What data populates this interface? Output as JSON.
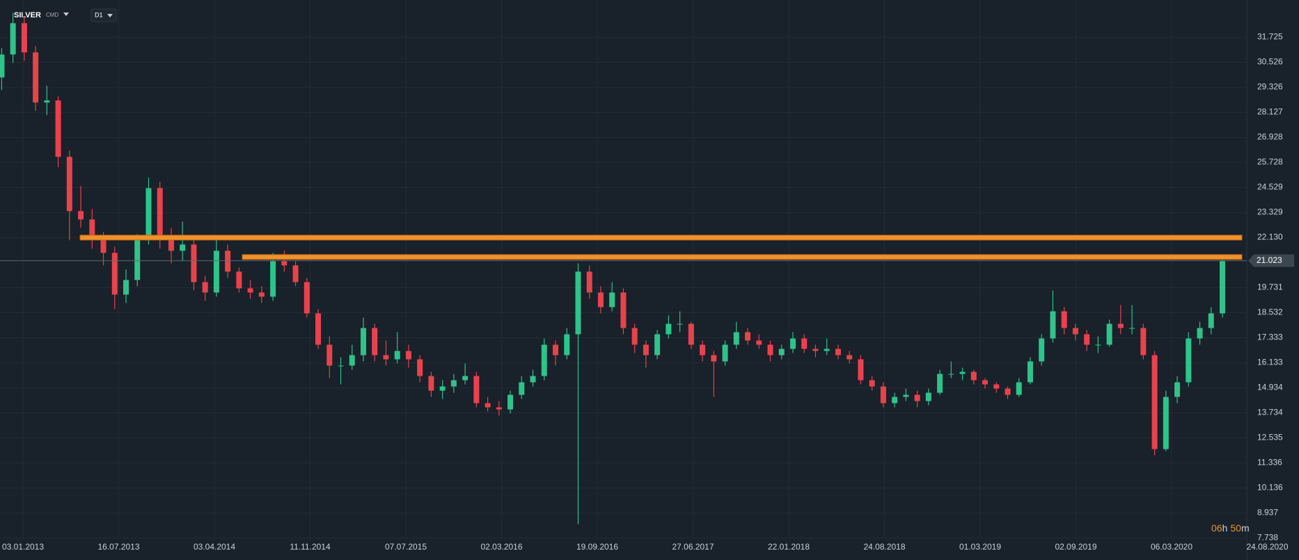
{
  "header": {
    "symbol": "SILVER",
    "market": "CMD",
    "interval": "D1"
  },
  "countdown": [
    "06",
    "h",
    "50",
    "m"
  ],
  "chart_data": {
    "type": "candlestick",
    "up_color": "#2fc38a",
    "down_color": "#e8434d",
    "ylim": [
      7.738,
      33.51
    ],
    "yticks": [
      31.725,
      30.526,
      29.326,
      28.127,
      26.928,
      25.728,
      24.529,
      23.329,
      {
        "value": 22.13,
        "label": "22.130"
      },
      19.731,
      18.532,
      17.333,
      16.133,
      14.934,
      13.734,
      12.535,
      11.336,
      10.136,
      8.937,
      7.738
    ],
    "last_price": 21.023,
    "levels": [
      22.13,
      21.2
    ],
    "level_color": "#f0922b",
    "xlabels": [
      "03.01.2013",
      "16.07.2013",
      "03.04.2014",
      "11.11.2014",
      "07.07.2015",
      "02.03.2016",
      "19.09.2016",
      "27.06.2017",
      "22.01.2018",
      "24.08.2018",
      "01.03.2019",
      "02.09.2019",
      "06.03.2020",
      "24.08.2020"
    ],
    "ohlc": [
      [
        29.8,
        31.2,
        29.2,
        30.9
      ],
      [
        30.9,
        32.9,
        30.5,
        32.4
      ],
      [
        32.4,
        32.7,
        30.6,
        31.0
      ],
      [
        31.0,
        31.3,
        28.2,
        28.6
      ],
      [
        28.6,
        29.4,
        28.0,
        28.7
      ],
      [
        28.7,
        28.9,
        25.5,
        26.0
      ],
      [
        26.0,
        26.3,
        22.0,
        23.4
      ],
      [
        23.4,
        24.6,
        22.6,
        23.0
      ],
      [
        23.0,
        23.5,
        21.6,
        22.0
      ],
      [
        22.0,
        22.4,
        20.8,
        21.4
      ],
      [
        21.4,
        21.7,
        18.7,
        19.4
      ],
      [
        19.4,
        20.6,
        19.0,
        20.1
      ],
      [
        20.1,
        22.3,
        19.8,
        22.0
      ],
      [
        22.0,
        25.0,
        21.8,
        24.5
      ],
      [
        24.5,
        24.8,
        21.6,
        22.0
      ],
      [
        22.0,
        22.6,
        20.9,
        21.5
      ],
      [
        21.5,
        22.9,
        21.0,
        21.8
      ],
      [
        21.8,
        22.0,
        19.6,
        20.0
      ],
      [
        20.0,
        20.3,
        19.1,
        19.5
      ],
      [
        19.5,
        22.1,
        19.3,
        21.5
      ],
      [
        21.5,
        21.8,
        20.2,
        20.5
      ],
      [
        20.5,
        20.7,
        19.5,
        19.7
      ],
      [
        19.7,
        20.1,
        19.2,
        19.5
      ],
      [
        19.5,
        19.8,
        19.0,
        19.3
      ],
      [
        19.3,
        21.4,
        19.1,
        21.0
      ],
      [
        21.0,
        21.5,
        20.5,
        20.8
      ],
      [
        20.8,
        21.0,
        19.8,
        20.0
      ],
      [
        20.0,
        20.2,
        18.3,
        18.5
      ],
      [
        18.5,
        18.7,
        16.8,
        17.0
      ],
      [
        17.0,
        17.4,
        15.4,
        16.0
      ],
      [
        16.0,
        16.4,
        15.1,
        16.0
      ],
      [
        16.0,
        17.0,
        15.8,
        16.5
      ],
      [
        16.5,
        18.3,
        16.2,
        17.8
      ],
      [
        17.8,
        18.0,
        16.2,
        16.5
      ],
      [
        16.5,
        17.2,
        16.0,
        16.3
      ],
      [
        16.3,
        17.6,
        16.1,
        16.7
      ],
      [
        16.7,
        17.0,
        15.9,
        16.3
      ],
      [
        16.3,
        16.5,
        15.2,
        15.5
      ],
      [
        15.5,
        15.7,
        14.5,
        14.8
      ],
      [
        14.8,
        15.3,
        14.4,
        15.0
      ],
      [
        15.0,
        15.6,
        14.7,
        15.3
      ],
      [
        15.3,
        16.1,
        15.1,
        15.5
      ],
      [
        15.5,
        15.7,
        14.0,
        14.2
      ],
      [
        14.2,
        14.5,
        13.8,
        14.0
      ],
      [
        14.0,
        14.3,
        13.6,
        13.9
      ],
      [
        13.9,
        14.8,
        13.7,
        14.6
      ],
      [
        14.6,
        15.5,
        14.4,
        15.2
      ],
      [
        15.2,
        15.8,
        15.0,
        15.5
      ],
      [
        15.5,
        17.3,
        15.3,
        17.0
      ],
      [
        17.0,
        17.2,
        16.0,
        16.5
      ],
      [
        16.5,
        17.8,
        16.3,
        17.5
      ],
      [
        17.5,
        20.9,
        8.4,
        20.5
      ],
      [
        20.5,
        20.8,
        19.2,
        19.5
      ],
      [
        19.5,
        19.8,
        18.5,
        18.8
      ],
      [
        18.8,
        20.0,
        18.6,
        19.5
      ],
      [
        19.5,
        19.7,
        17.5,
        17.8
      ],
      [
        17.8,
        18.0,
        16.6,
        17.0
      ],
      [
        17.0,
        17.2,
        15.9,
        16.5
      ],
      [
        16.5,
        17.7,
        16.3,
        17.5
      ],
      [
        17.5,
        18.4,
        17.3,
        18.0
      ],
      [
        18.0,
        18.6,
        17.6,
        18.0
      ],
      [
        18.0,
        18.1,
        16.8,
        17.0
      ],
      [
        17.0,
        17.2,
        16.2,
        16.5
      ],
      [
        16.5,
        16.7,
        14.5,
        16.2
      ],
      [
        16.2,
        17.2,
        16.0,
        17.0
      ],
      [
        17.0,
        18.1,
        16.8,
        17.6
      ],
      [
        17.6,
        17.8,
        17.0,
        17.2
      ],
      [
        17.2,
        17.5,
        16.8,
        17.0
      ],
      [
        17.0,
        17.2,
        16.2,
        16.5
      ],
      [
        16.5,
        17.0,
        16.3,
        16.8
      ],
      [
        16.8,
        17.6,
        16.6,
        17.3
      ],
      [
        17.3,
        17.5,
        16.6,
        16.8
      ],
      [
        16.8,
        17.0,
        16.4,
        16.7
      ],
      [
        16.7,
        17.3,
        16.5,
        16.8
      ],
      [
        16.8,
        17.0,
        16.3,
        16.5
      ],
      [
        16.5,
        16.7,
        16.1,
        16.3
      ],
      [
        16.3,
        16.5,
        15.1,
        15.3
      ],
      [
        15.3,
        15.5,
        14.8,
        15.0
      ],
      [
        15.0,
        15.2,
        14.0,
        14.2
      ],
      [
        14.2,
        14.7,
        14.0,
        14.5
      ],
      [
        14.5,
        14.9,
        14.3,
        14.6
      ],
      [
        14.6,
        14.8,
        14.0,
        14.3
      ],
      [
        14.3,
        14.9,
        14.1,
        14.7
      ],
      [
        14.7,
        15.8,
        14.6,
        15.6
      ],
      [
        15.6,
        16.2,
        15.4,
        15.6
      ],
      [
        15.6,
        15.9,
        15.3,
        15.7
      ],
      [
        15.7,
        15.8,
        15.1,
        15.3
      ],
      [
        15.3,
        15.4,
        14.9,
        15.1
      ],
      [
        15.1,
        15.2,
        14.7,
        14.9
      ],
      [
        14.9,
        15.0,
        14.4,
        14.6
      ],
      [
        14.6,
        15.4,
        14.5,
        15.2
      ],
      [
        15.2,
        16.4,
        15.1,
        16.2
      ],
      [
        16.2,
        17.5,
        16.0,
        17.3
      ],
      [
        17.3,
        19.6,
        17.1,
        18.6
      ],
      [
        18.6,
        18.8,
        17.5,
        17.8
      ],
      [
        17.8,
        18.0,
        17.2,
        17.5
      ],
      [
        17.5,
        17.7,
        16.7,
        17.0
      ],
      [
        17.0,
        17.4,
        16.6,
        17.0
      ],
      [
        17.0,
        18.2,
        16.9,
        18.0
      ],
      [
        18.0,
        18.9,
        17.5,
        17.8
      ],
      [
        17.8,
        18.9,
        17.5,
        17.8
      ],
      [
        17.8,
        18.0,
        16.3,
        16.5
      ],
      [
        16.5,
        16.7,
        11.7,
        12.0
      ],
      [
        12.0,
        14.8,
        11.9,
        14.5
      ],
      [
        14.5,
        15.5,
        14.2,
        15.2
      ],
      [
        15.2,
        17.6,
        15.0,
        17.3
      ],
      [
        17.3,
        18.1,
        17.0,
        17.8
      ],
      [
        17.8,
        18.8,
        17.5,
        18.5
      ],
      [
        18.5,
        21.1,
        18.3,
        21.0
      ]
    ]
  }
}
